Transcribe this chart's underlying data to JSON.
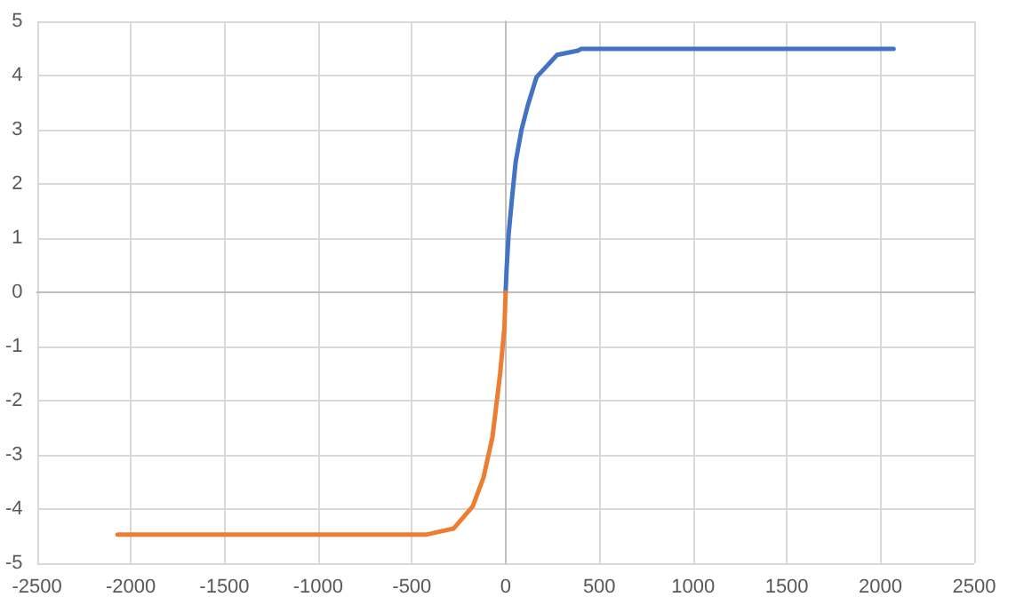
{
  "chart_data": {
    "type": "line",
    "series": [
      {
        "color": "#4472c4",
        "x": [
          0,
          6,
          16,
          38,
          54,
          85,
          117,
          165,
          275,
          386,
          402,
          2070
        ],
        "values": [
          0,
          0.46,
          1.06,
          1.87,
          2.41,
          3.0,
          3.43,
          3.97,
          4.38,
          4.46,
          4.49,
          4.49
        ]
      },
      {
        "color": "#ed7d31",
        "x": [
          0,
          -6,
          -29,
          -70,
          -118,
          -175,
          -277,
          -420,
          -2070
        ],
        "values": [
          0,
          -0.64,
          -1.5,
          -2.67,
          -3.42,
          -3.95,
          -4.36,
          -4.47,
          -4.47
        ]
      }
    ],
    "xlim": [
      -2500,
      2500
    ],
    "xticks": [
      -2500,
      -2000,
      -1500,
      -1000,
      -500,
      0,
      500,
      1000,
      1500,
      2000,
      2500
    ],
    "ylim": [
      -5,
      5
    ],
    "yticks": [
      -5,
      -4,
      -3,
      -2,
      -1,
      0,
      1,
      2,
      3,
      4,
      5
    ],
    "grid": true,
    "marker": "none",
    "line_style": "solid"
  }
}
